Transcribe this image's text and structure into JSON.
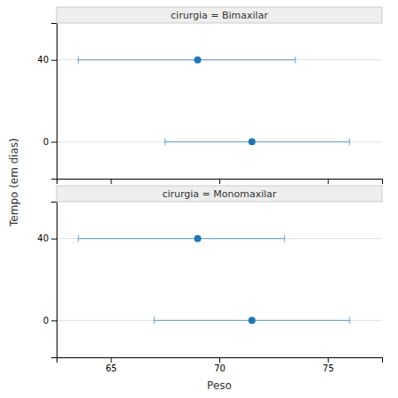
{
  "chart_data": [
    {
      "type": "scatter",
      "title": "cirurgia = Bimaxilar",
      "x": [
        69.0,
        71.5
      ],
      "values": [
        40,
        0
      ],
      "xerr_low": [
        5.5,
        4.0
      ],
      "xerr_high": [
        4.5,
        4.5
      ],
      "xlim": [
        62.5,
        77.5
      ],
      "ylim": [
        -18,
        58
      ],
      "xticks": [
        65,
        70,
        75
      ],
      "yticks": [
        0,
        40
      ],
      "grid": true,
      "tick_labels": "y",
      "ylabel": "Tempo (em dias)"
    },
    {
      "type": "scatter",
      "title": "cirurgia = Monomaxilar",
      "x": [
        69.0,
        71.5
      ],
      "values": [
        40,
        0
      ],
      "xerr_low": [
        5.5,
        4.5
      ],
      "xerr_high": [
        4.0,
        4.5
      ],
      "xlim": [
        62.5,
        77.5
      ],
      "ylim": [
        -18,
        58
      ],
      "xticks": [
        65,
        70,
        75
      ],
      "yticks": [
        0,
        40
      ],
      "grid": true,
      "xlabel": "Peso"
    }
  ]
}
